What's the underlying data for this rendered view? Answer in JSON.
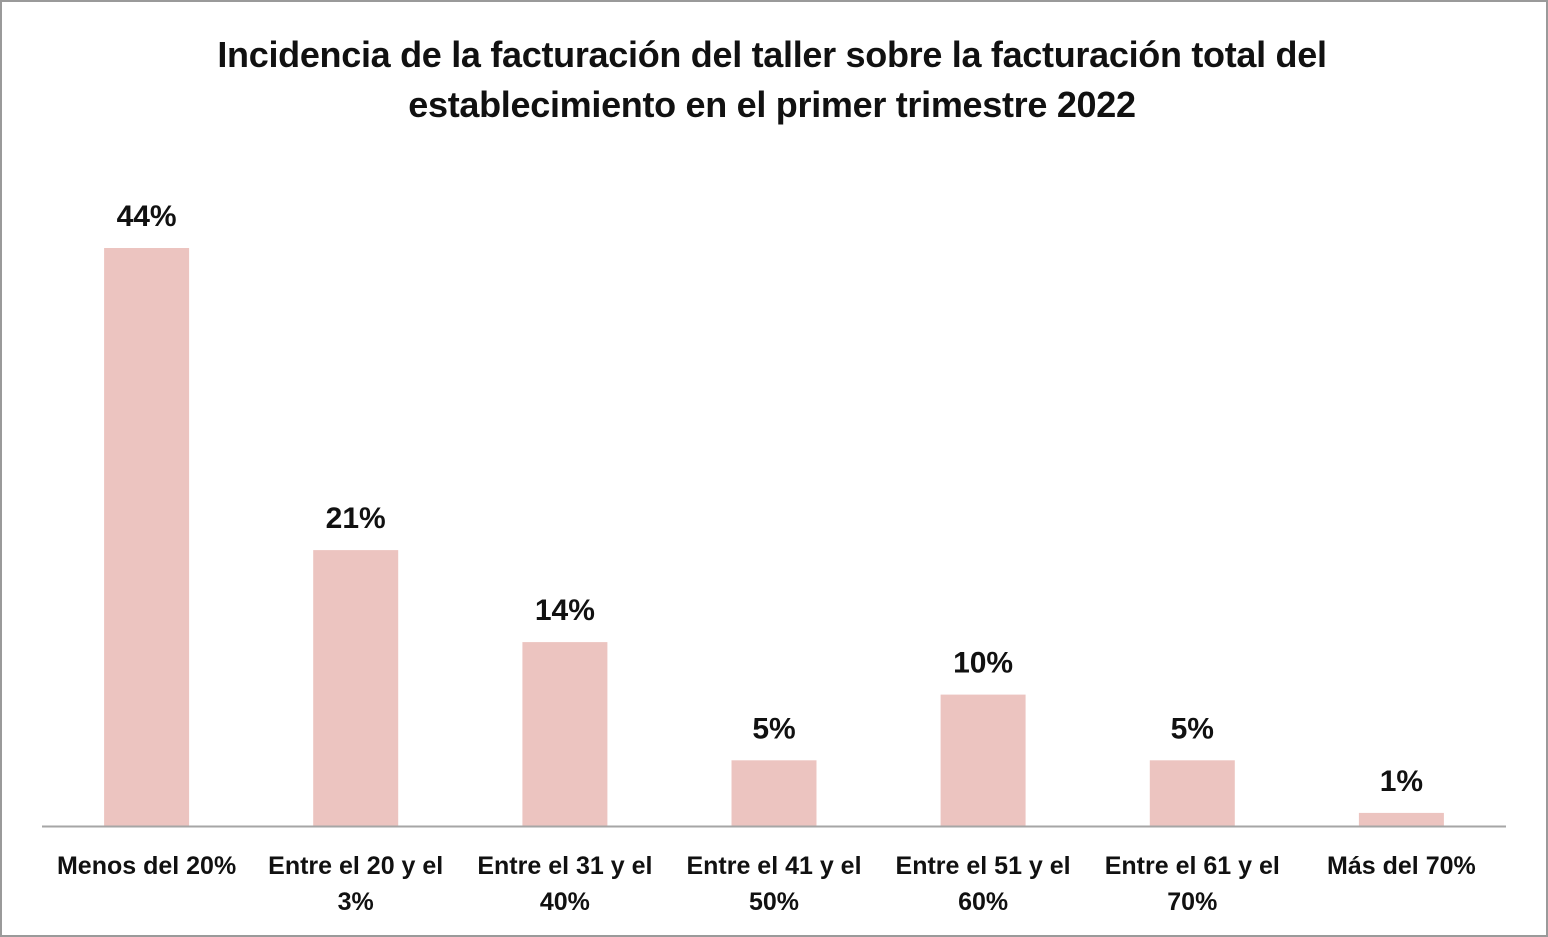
{
  "chart_data": {
    "type": "bar",
    "title_lines": [
      "Incidencia de la facturación del taller sobre la facturación total del",
      "establecimiento en el primer trimestre 2022"
    ],
    "categories": [
      [
        "Menos del 20%"
      ],
      [
        "Entre el 20 y el",
        "3%"
      ],
      [
        "Entre el 31 y el",
        "40%"
      ],
      [
        "Entre el 41 y el",
        "50%"
      ],
      [
        "Entre el 51 y el",
        "60%"
      ],
      [
        "Entre el 61 y el",
        "70%"
      ],
      [
        "Más del 70%"
      ]
    ],
    "values": [
      44,
      21,
      14,
      5,
      10,
      5,
      1
    ],
    "value_labels": [
      "44%",
      "21%",
      "14%",
      "5%",
      "10%",
      "5%",
      "1%"
    ],
    "unit": "%",
    "ylim": [
      0,
      44
    ],
    "grid": false,
    "legend": "none",
    "colors": {
      "bar": "#ecc4c0",
      "axis": "#a6a6a6",
      "text": "#111111",
      "border": "#9a9a9a"
    }
  }
}
